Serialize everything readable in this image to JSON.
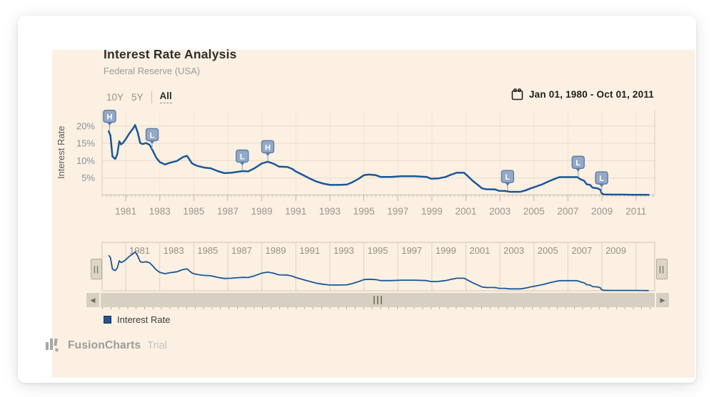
{
  "header": {
    "title": "Interest Rate Analysis",
    "subtitle": "Federal Reserve (USA)"
  },
  "toolbar": {
    "periods": [
      {
        "label": "10Y",
        "active": false
      },
      {
        "label": "5Y",
        "active": false
      },
      {
        "label": "All",
        "active": true
      }
    ],
    "date_range": "Jan 01, 1980 - Oct 01, 2011",
    "calendar_icon": "calendar"
  },
  "chart_data": {
    "type": "line",
    "title": "Interest Rate Analysis",
    "subtitle": "Federal Reserve (USA)",
    "ylabel": "Interest Rate",
    "series_name": "Interest Rate",
    "line_color": "#1A5799",
    "grid": true,
    "legend_position": "bottom-left",
    "ylim": [
      0,
      22
    ],
    "yticks": [
      {
        "v": 5,
        "label": "5%"
      },
      {
        "v": 10,
        "label": "10%"
      },
      {
        "v": 15,
        "label": "15%"
      },
      {
        "v": 20,
        "label": "20%"
      }
    ],
    "xticks": [
      1981,
      1983,
      1985,
      1987,
      1989,
      1991,
      1993,
      1995,
      1997,
      1999,
      2001,
      2003,
      2005,
      2007,
      2009,
      2011
    ],
    "x_range_years": [
      1980.0,
      2011.75
    ],
    "points": [
      [
        1980.0,
        18.5
      ],
      [
        1980.1,
        17.2
      ],
      [
        1980.22,
        11.2
      ],
      [
        1980.38,
        10.5
      ],
      [
        1980.5,
        11.8
      ],
      [
        1980.62,
        15.6
      ],
      [
        1980.72,
        14.7
      ],
      [
        1980.85,
        15.2
      ],
      [
        1981.0,
        16.2
      ],
      [
        1981.2,
        17.8
      ],
      [
        1981.45,
        19.4
      ],
      [
        1981.55,
        20.3
      ],
      [
        1981.7,
        18.2
      ],
      [
        1981.85,
        15.1
      ],
      [
        1982.0,
        14.8
      ],
      [
        1982.2,
        15.1
      ],
      [
        1982.4,
        14.6
      ],
      [
        1982.6,
        12.8
      ],
      [
        1982.8,
        10.8
      ],
      [
        1983.0,
        9.6
      ],
      [
        1983.3,
        8.9
      ],
      [
        1983.6,
        9.4
      ],
      [
        1984.0,
        9.9
      ],
      [
        1984.35,
        11.0
      ],
      [
        1984.6,
        11.4
      ],
      [
        1984.9,
        9.2
      ],
      [
        1985.2,
        8.5
      ],
      [
        1985.6,
        8.0
      ],
      [
        1986.0,
        7.8
      ],
      [
        1986.4,
        7.0
      ],
      [
        1986.8,
        6.4
      ],
      [
        1987.2,
        6.5
      ],
      [
        1987.6,
        6.8
      ],
      [
        1987.9,
        7.0
      ],
      [
        1988.2,
        6.9
      ],
      [
        1988.6,
        7.9
      ],
      [
        1989.0,
        9.2
      ],
      [
        1989.35,
        9.7
      ],
      [
        1989.7,
        9.1
      ],
      [
        1990.0,
        8.3
      ],
      [
        1990.5,
        8.2
      ],
      [
        1990.8,
        7.6
      ],
      [
        1991.0,
        6.9
      ],
      [
        1991.4,
        5.9
      ],
      [
        1991.8,
        4.9
      ],
      [
        1992.2,
        4.0
      ],
      [
        1992.6,
        3.4
      ],
      [
        1993.0,
        3.0
      ],
      [
        1993.6,
        3.0
      ],
      [
        1994.0,
        3.1
      ],
      [
        1994.3,
        3.7
      ],
      [
        1994.7,
        4.8
      ],
      [
        1995.0,
        5.8
      ],
      [
        1995.3,
        6.0
      ],
      [
        1995.7,
        5.8
      ],
      [
        1996.0,
        5.3
      ],
      [
        1996.6,
        5.3
      ],
      [
        1997.2,
        5.5
      ],
      [
        1998.0,
        5.5
      ],
      [
        1998.7,
        5.3
      ],
      [
        1998.95,
        4.8
      ],
      [
        1999.4,
        4.9
      ],
      [
        1999.8,
        5.3
      ],
      [
        2000.1,
        5.9
      ],
      [
        2000.45,
        6.5
      ],
      [
        2000.9,
        6.5
      ],
      [
        2001.1,
        5.6
      ],
      [
        2001.4,
        4.2
      ],
      [
        2001.7,
        3.0
      ],
      [
        2001.95,
        2.0
      ],
      [
        2002.2,
        1.75
      ],
      [
        2002.7,
        1.7
      ],
      [
        2002.95,
        1.3
      ],
      [
        2003.3,
        1.25
      ],
      [
        2003.6,
        1.0
      ],
      [
        2004.2,
        1.0
      ],
      [
        2004.5,
        1.4
      ],
      [
        2004.8,
        2.0
      ],
      [
        2005.1,
        2.5
      ],
      [
        2005.5,
        3.2
      ],
      [
        2005.9,
        4.1
      ],
      [
        2006.2,
        4.7
      ],
      [
        2006.5,
        5.25
      ],
      [
        2007.55,
        5.25
      ],
      [
        2007.75,
        4.6
      ],
      [
        2007.95,
        4.2
      ],
      [
        2008.1,
        3.2
      ],
      [
        2008.3,
        3.0
      ],
      [
        2008.45,
        2.2
      ],
      [
        2008.75,
        2.0
      ],
      [
        2008.9,
        1.6
      ],
      [
        2008.98,
        0.6
      ],
      [
        2009.1,
        0.25
      ],
      [
        2009.6,
        0.2
      ],
      [
        2010.2,
        0.2
      ],
      [
        2010.8,
        0.17
      ],
      [
        2011.4,
        0.15
      ],
      [
        2011.75,
        0.12
      ]
    ],
    "markers": [
      {
        "t": 1980.05,
        "v": 18.5,
        "label": "H"
      },
      {
        "t": 1982.55,
        "v": 13.2,
        "label": "L"
      },
      {
        "t": 1987.85,
        "v": 7.0,
        "label": "L"
      },
      {
        "t": 1989.35,
        "v": 9.7,
        "label": "H"
      },
      {
        "t": 2003.45,
        "v": 1.1,
        "label": "L"
      },
      {
        "t": 2007.6,
        "v": 5.2,
        "label": "L"
      },
      {
        "t": 2008.98,
        "v": 0.7,
        "label": "L"
      }
    ],
    "marker_colors": {
      "fill": "#90A6C7",
      "border": "#5E7CA7",
      "text": "#FFFFFF"
    }
  },
  "navigator": {
    "labels": [
      "1981",
      "1983",
      "1985",
      "1987",
      "1989",
      "1991",
      "1993",
      "1995",
      "1997",
      "1999",
      "2001",
      "2003",
      "2005",
      "2007",
      "2009"
    ],
    "left_handle": "||",
    "right_handle": "||",
    "left_arrow": "◀",
    "right_arrow": "▶"
  },
  "legend": {
    "items": [
      {
        "label": "Interest Rate",
        "color": "#2B5187"
      }
    ]
  },
  "branding": {
    "name": "FusionCharts",
    "suffix": "Trial"
  }
}
